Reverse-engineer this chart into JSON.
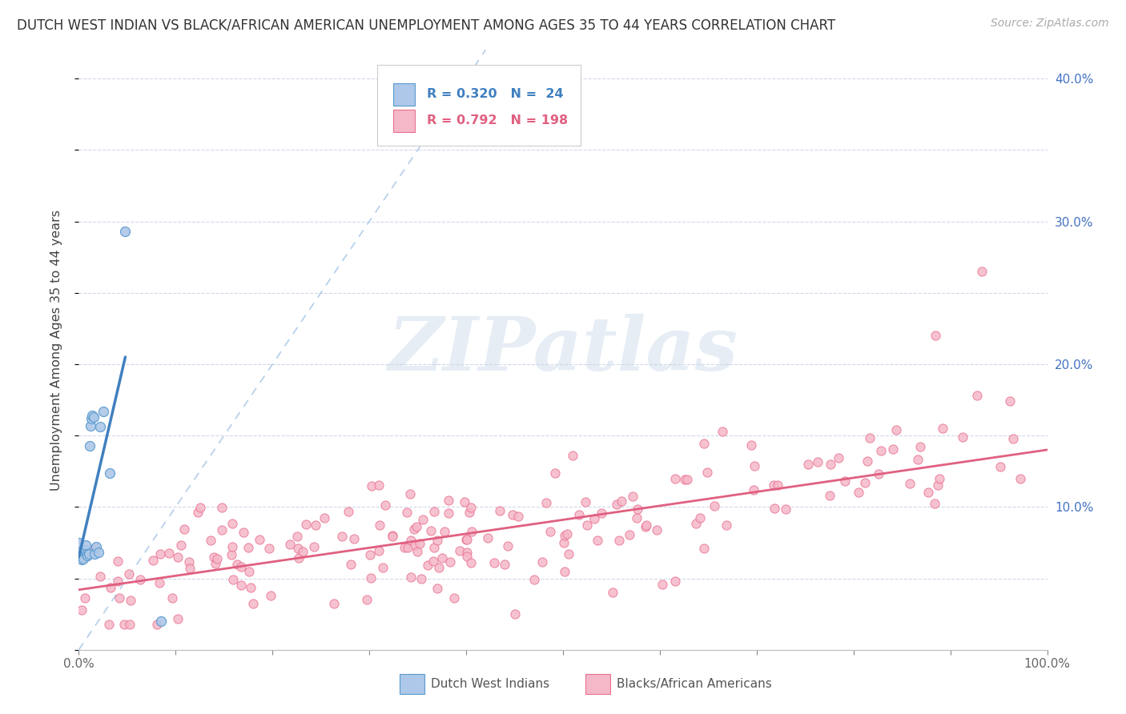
{
  "title": "DUTCH WEST INDIAN VS BLACK/AFRICAN AMERICAN UNEMPLOYMENT AMONG AGES 35 TO 44 YEARS CORRELATION CHART",
  "source": "Source: ZipAtlas.com",
  "ylabel": "Unemployment Among Ages 35 to 44 years",
  "xlim": [
    0.0,
    1.0
  ],
  "ylim": [
    0.0,
    0.42
  ],
  "x_ticks": [
    0.0,
    0.1,
    0.2,
    0.3,
    0.4,
    0.5,
    0.6,
    0.7,
    0.8,
    0.9,
    1.0
  ],
  "x_tick_labels": [
    "0.0%",
    "",
    "",
    "",
    "",
    "",
    "",
    "",
    "",
    "",
    "100.0%"
  ],
  "y_ticks": [
    0.0,
    0.05,
    0.1,
    0.15,
    0.2,
    0.25,
    0.3,
    0.35,
    0.4
  ],
  "y_tick_labels": [
    "",
    "",
    "10.0%",
    "",
    "20.0%",
    "",
    "30.0%",
    "",
    "40.0%"
  ],
  "blue_R": "0.320",
  "blue_N": "24",
  "pink_R": "0.792",
  "pink_N": "198",
  "blue_color": "#adc8e8",
  "blue_edge_color": "#5a9ad0",
  "blue_line_color": "#4080c0",
  "pink_color": "#f5b8c8",
  "pink_edge_color": "#e87090",
  "pink_line_color": "#e06080",
  "diag_color": "#aac8e8",
  "grid_color": "#d0d8e8",
  "watermark_color": "#c8d8ea",
  "ytick_label_color": "#4472c4",
  "xtick_label_color": "#666666",
  "blue_line_x": [
    0.0,
    0.048
  ],
  "blue_line_y": [
    0.065,
    0.205
  ],
  "pink_line_x": [
    0.0,
    1.0
  ],
  "pink_line_y": [
    0.042,
    0.14
  ],
  "blue_pts_x": [
    0.0,
    0.0,
    0.002,
    0.003,
    0.004,
    0.005,
    0.006,
    0.007,
    0.008,
    0.009,
    0.01,
    0.011,
    0.012,
    0.013,
    0.014,
    0.015,
    0.016,
    0.018,
    0.02,
    0.022,
    0.025,
    0.032,
    0.048,
    0.085
  ],
  "blue_pts_y": [
    0.068,
    0.075,
    0.066,
    0.063,
    0.065,
    0.064,
    0.07,
    0.073,
    0.067,
    0.066,
    0.067,
    0.143,
    0.157,
    0.162,
    0.164,
    0.163,
    0.067,
    0.072,
    0.068,
    0.156,
    0.167,
    0.124,
    0.293,
    0.02
  ]
}
